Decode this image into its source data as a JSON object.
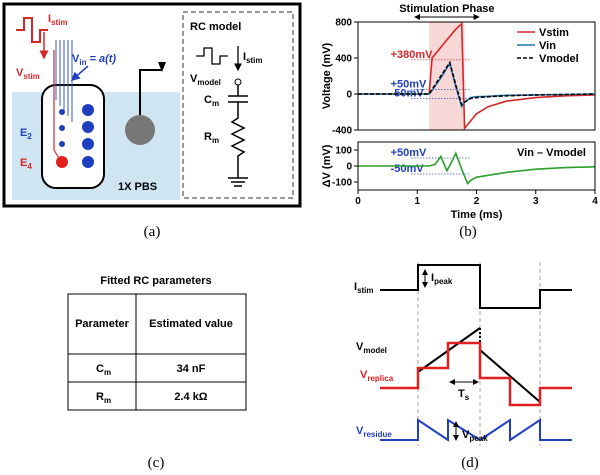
{
  "panel_a": {
    "caption": "(a)",
    "i_stim": {
      "text": "I",
      "sub": "stim"
    },
    "v_stim": {
      "text": "V",
      "sub": "stim"
    },
    "v_in": {
      "text": "V",
      "sub": "in",
      "rest": " = a(t)"
    },
    "e2": {
      "text": "E",
      "sub": "2"
    },
    "e4": {
      "text": "E",
      "sub": "4"
    },
    "medium": "1X PBS",
    "rc_title": "RC model",
    "rc_i_stim": {
      "text": "I",
      "sub": "stim"
    },
    "v_model": {
      "text": "V",
      "sub": "model"
    },
    "c_m": {
      "text": "C",
      "sub": "m"
    },
    "r_m": {
      "text": "R",
      "sub": "m"
    }
  },
  "chart_data": [
    {
      "type": "line",
      "ylabel": "Voltage (mV)",
      "xlim": [
        0,
        4
      ],
      "ylim": [
        -400,
        800
      ],
      "yticks": [
        -400,
        0,
        400,
        800
      ],
      "x": [
        0,
        0.5,
        1.0,
        1.2,
        1.25,
        1.4,
        1.55,
        1.65,
        1.75,
        1.8,
        1.9,
        2.0,
        2.2,
        2.5,
        3.0,
        3.5,
        4.0
      ],
      "series": [
        {
          "name": "Vstim",
          "color": "#d62728",
          "values": [
            0,
            0,
            0,
            0,
            400,
            520,
            640,
            720,
            780,
            -380,
            -300,
            -220,
            -140,
            -80,
            -40,
            -20,
            -10
          ]
        },
        {
          "name": "Vin",
          "color": "#1f77b4",
          "values": [
            0,
            0,
            0,
            0,
            40,
            180,
            340,
            80,
            -140,
            -90,
            -40,
            -30,
            -25,
            -15,
            -10,
            -5,
            0
          ]
        },
        {
          "name": "Vmodel",
          "color": "#000000",
          "dashed": true,
          "values": [
            0,
            0,
            0,
            0,
            50,
            200,
            350,
            100,
            -120,
            -90,
            -50,
            -40,
            -30,
            -20,
            -10,
            -5,
            0
          ]
        }
      ],
      "legend": "upper right",
      "annotations": [
        {
          "label": "+380mV",
          "value": 380,
          "color": "#d62728"
        },
        {
          "label": "+50mV",
          "value": 50,
          "color": "#1f3fbf"
        },
        {
          "label": "-50mV",
          "value": -50,
          "color": "#1f3fbf"
        }
      ],
      "span": {
        "label": "Stimulation Phase",
        "x": [
          1.2,
          1.8
        ]
      }
    },
    {
      "type": "line",
      "xlabel": "Time (ms)",
      "ylabel": "ΔV (mV)",
      "xlim": [
        0,
        4
      ],
      "ylim": [
        -150,
        150
      ],
      "yticks": [
        -100,
        0,
        100
      ],
      "xticks": [
        0,
        1,
        2,
        3,
        4
      ],
      "x": [
        0,
        0.5,
        1.0,
        1.2,
        1.3,
        1.4,
        1.5,
        1.6,
        1.65,
        1.75,
        1.85,
        1.9,
        2.0,
        2.5,
        3.0,
        3.5,
        4.0
      ],
      "series": [
        {
          "name": "Vin – Vmodel",
          "color": "#2ca02c",
          "values": [
            0,
            0,
            0,
            0,
            10,
            60,
            -30,
            40,
            80,
            -20,
            -110,
            -90,
            -70,
            -40,
            -20,
            -10,
            -5
          ]
        }
      ],
      "legend": "upper right",
      "annotations": [
        {
          "label": "+50mV",
          "value": 50,
          "color": "#1f3fbf"
        },
        {
          "label": "-50mV",
          "value": -50,
          "color": "#1f3fbf"
        }
      ]
    }
  ],
  "panel_b_caption": "(b)",
  "table": {
    "title": "Fitted RC parameters",
    "header": [
      "Parameter",
      "Estimated value"
    ],
    "rows": [
      [
        {
          "text": "C",
          "sub": "m"
        },
        "34 nF"
      ],
      [
        {
          "text": "R",
          "sub": "m"
        },
        "2.4 kΩ"
      ]
    ],
    "caption": "(c)"
  },
  "panel_d": {
    "caption": "(d)",
    "i_stim": {
      "text": "I",
      "sub": "stim"
    },
    "i_peak": {
      "text": "I",
      "sub": "peak"
    },
    "v_model": {
      "text": "V",
      "sub": "model"
    },
    "v_replica": {
      "text": "V",
      "sub": "replica"
    },
    "t_s": {
      "text": "T",
      "sub": "s"
    },
    "v_residue": {
      "text": "V",
      "sub": "residue"
    },
    "v_peak": {
      "text": "V",
      "sub": "peak"
    }
  }
}
